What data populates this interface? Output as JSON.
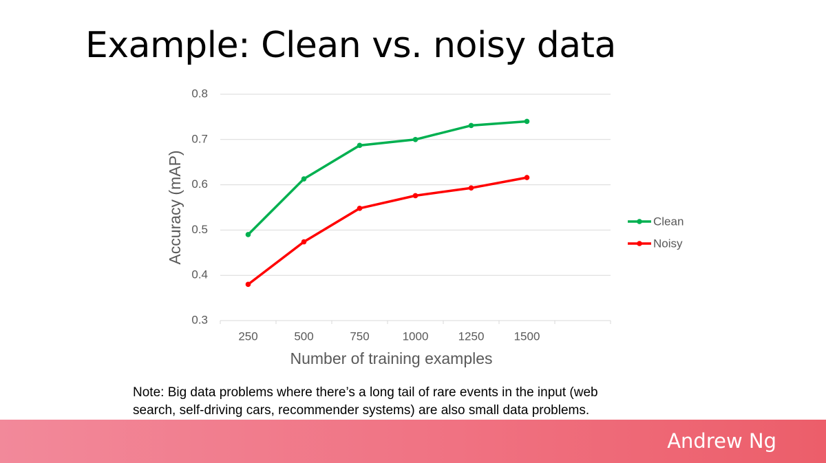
{
  "chart_data": {
    "type": "line",
    "title": "Example: Clean vs. noisy data",
    "xlabel": "Number of training examples",
    "ylabel": "Accuracy (mAP)",
    "categories": [
      "250",
      "500",
      "750",
      "1000",
      "1250",
      "1500",
      null
    ],
    "series": [
      {
        "name": "Clean",
        "color": "#00b050",
        "values": [
          0.49,
          0.613,
          0.687,
          0.7,
          0.731,
          0.74,
          null
        ]
      },
      {
        "name": "Noisy",
        "color": "#ff0000",
        "values": [
          0.38,
          0.474,
          0.548,
          0.576,
          0.593,
          0.616,
          null
        ]
      }
    ],
    "ylim": [
      0.3,
      0.8
    ],
    "yticks": [
      0.3,
      0.4,
      0.5,
      0.6,
      0.7,
      0.8
    ],
    "grid": true,
    "legend": "right"
  },
  "note": [
    "Note: Big data problems where there’s a long tail of rare events in the input (web",
    "search, self-driving cars, recommender systems) are also small data problems."
  ],
  "footer": {
    "author": "Andrew Ng"
  }
}
